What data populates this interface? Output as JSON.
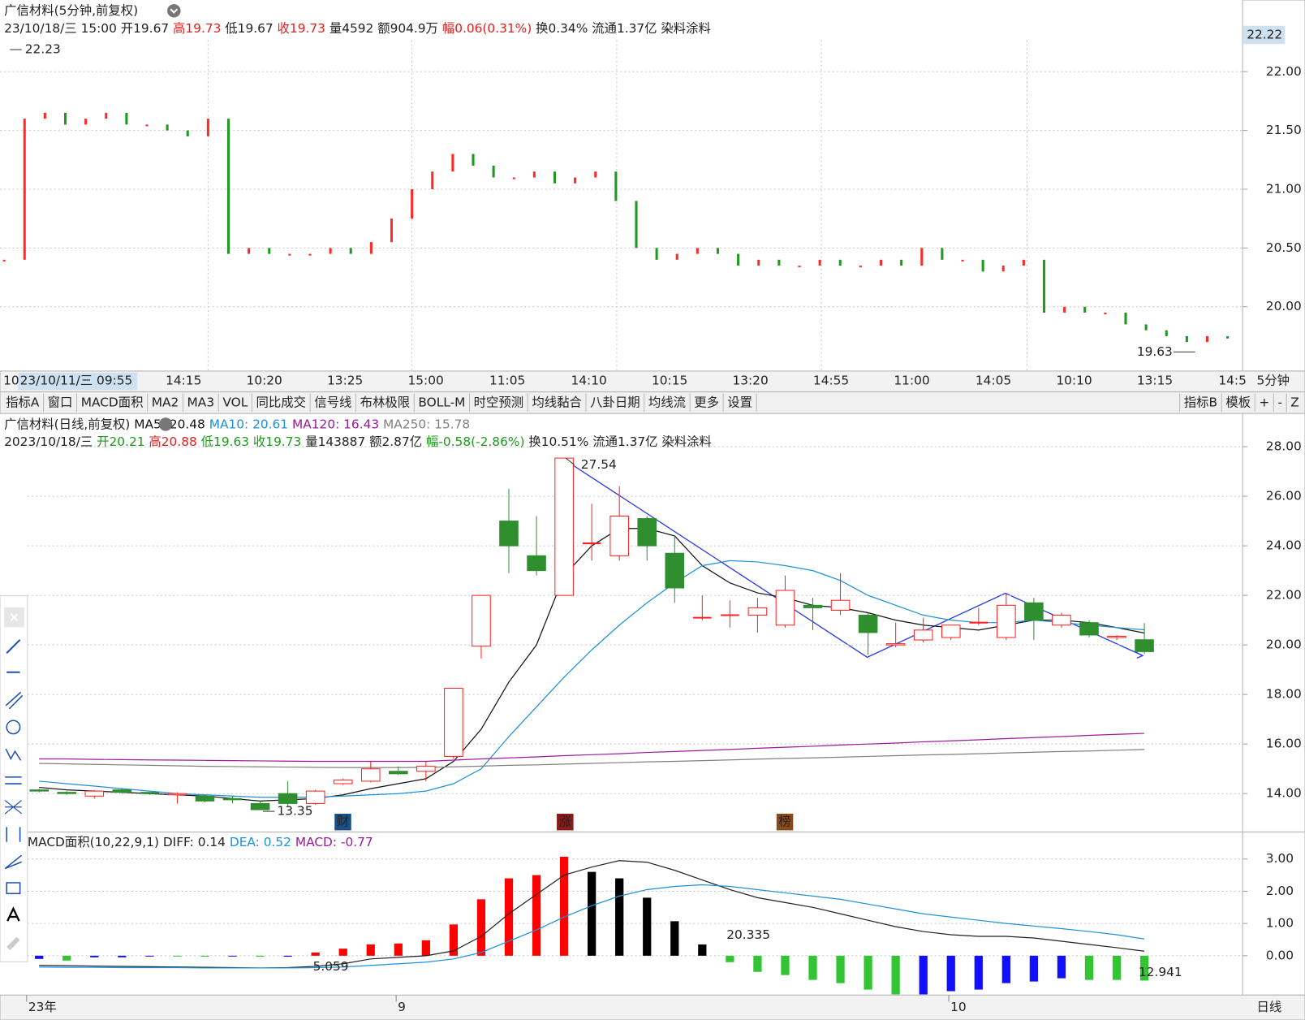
{
  "intraday": {
    "title": "广信材料(5分钟,前复权)",
    "fields": [
      "23/10/18/三 15:00",
      "开19.67",
      "高19.73",
      "低19.67",
      "收19.73",
      "量4592",
      "额904.9万",
      "幅0.06(0.31%)",
      "换0.34%",
      "流通1.37亿",
      "染料涂料"
    ],
    "current_price_label": "22.22",
    "closes": [
      20.4,
      21.6,
      21.65,
      21.55,
      21.6,
      21.65,
      21.55,
      21.55,
      21.5,
      21.45,
      21.6,
      20.45,
      20.5,
      20.45,
      20.45,
      20.45,
      20.5,
      20.45,
      20.55,
      20.75,
      21.0,
      21.15,
      21.3,
      21.2,
      21.1,
      21.1,
      21.15,
      21.05,
      21.1,
      21.15,
      20.9,
      20.5,
      20.4,
      20.45,
      20.5,
      20.45,
      20.35,
      20.4,
      20.35,
      20.35,
      20.4,
      20.35,
      20.35,
      20.4,
      20.35,
      20.5,
      20.4,
      20.4,
      20.3,
      20.35,
      20.4,
      19.95,
      20.0,
      19.95,
      19.95,
      19.85,
      19.8,
      19.75,
      19.7,
      19.75,
      19.73
    ],
    "up_color": "#ff2a2a",
    "down_color": "#1e9a1e",
    "ylim": [
      19.46,
      22.27
    ],
    "yticks": [
      {
        "value": 22,
        "label": "22.00"
      },
      {
        "value": 21.5,
        "label": "21.50"
      },
      {
        "value": 21,
        "label": "21.00"
      },
      {
        "value": 20.5,
        "label": "20.50"
      },
      {
        "value": 20,
        "label": "20.00"
      }
    ],
    "high_label": 22.23,
    "low_label": 19.63,
    "time_labels": [
      "10",
      "23/10/11/三 09:55",
      "14:15",
      "10:20",
      "13:25",
      "15:00",
      "11:05",
      "14:10",
      "10:15",
      "13:20",
      "14:55",
      "11:00",
      "14:05",
      "10:10",
      "13:15",
      "14:5"
    ],
    "period_label": "5分钟"
  },
  "toolbar": {
    "left": [
      "指标A",
      "窗口",
      "MACD面积",
      "MA2",
      "MA3",
      "VOL",
      "同比成交",
      "信号线",
      "布林极限",
      "BOLL-M",
      "时空预测",
      "均线黏合",
      "八卦日期",
      "均线流",
      "更多",
      "设置"
    ],
    "right": [
      "指标B",
      "模板",
      "+",
      "-",
      "Z"
    ]
  },
  "daily": {
    "title": "广信材料(日线,前复权)",
    "ma_legend": [
      "MA5: 20.48",
      "MA10: 20.61",
      "MA120: 16.43",
      "MA250: 15.78"
    ],
    "fields": [
      "2023/10/18/三",
      "开20.21",
      "高20.88",
      "低19.63",
      "收19.73",
      "量143887",
      "额2.87亿",
      "幅-0.58(-2.86%)",
      "换10.51%",
      "流通1.37亿",
      "染料涂料"
    ],
    "open": [
      14.15,
      14.05,
      13.9,
      14.15,
      14.05,
      13.95,
      13.9,
      13.8,
      13.6,
      14.0,
      13.6,
      14.4,
      14.5,
      14.9,
      14.9,
      15.5,
      19.95,
      25.0,
      23.6,
      22.0,
      24.1,
      23.6,
      25.1,
      23.7,
      21.1,
      21.2,
      21.2,
      20.8,
      21.6,
      21.4,
      21.2,
      20.0,
      20.2,
      20.3,
      20.9,
      20.3,
      21.7,
      20.8,
      20.9,
      20.3,
      20.21
    ],
    "high": [
      14.2,
      14.1,
      14.15,
      14.2,
      14.05,
      14.05,
      13.95,
      13.9,
      13.7,
      14.5,
      14.15,
      14.6,
      15.3,
      15.1,
      15.3,
      18.25,
      22.0,
      26.3,
      25.2,
      27.54,
      25.7,
      26.4,
      25.2,
      24.4,
      22.0,
      21.8,
      21.9,
      22.8,
      21.9,
      22.9,
      21.3,
      20.9,
      21.1,
      20.8,
      21.5,
      22.1,
      21.9,
      21.3,
      21.0,
      20.4,
      20.88
    ],
    "low": [
      14.05,
      13.95,
      13.8,
      14.0,
      13.95,
      13.6,
      13.65,
      13.6,
      13.35,
      13.5,
      13.55,
      14.35,
      14.45,
      14.75,
      14.5,
      15.4,
      19.45,
      22.9,
      22.8,
      22.0,
      23.4,
      23.4,
      23.4,
      21.7,
      21.0,
      20.7,
      20.5,
      20.7,
      20.6,
      21.2,
      19.6,
      19.9,
      20.1,
      20.2,
      20.8,
      20.2,
      20.2,
      20.7,
      20.3,
      20.2,
      19.63
    ],
    "close": [
      14.1,
      14.0,
      14.1,
      14.05,
      14.0,
      14.0,
      13.7,
      13.75,
      13.35,
      13.6,
      14.1,
      14.55,
      15.0,
      14.8,
      15.1,
      18.25,
      22.0,
      24.0,
      23.0,
      27.54,
      24.1,
      25.2,
      24.0,
      22.3,
      21.1,
      21.2,
      21.5,
      22.2,
      21.5,
      21.8,
      20.5,
      20.05,
      20.6,
      20.8,
      20.9,
      21.6,
      21.0,
      21.2,
      20.4,
      20.35,
      19.73
    ],
    "up_color": "#ff2020",
    "down_color": "#2f8f2f",
    "ma_lines": [
      {
        "color": "#111111",
        "values": [
          14.25,
          14.15,
          14.1,
          14.05,
          14.0,
          13.95,
          13.9,
          13.8,
          13.7,
          13.75,
          13.8,
          13.95,
          14.2,
          14.4,
          14.6,
          15.3,
          16.6,
          18.5,
          20.0,
          22.8,
          24.0,
          24.7,
          24.7,
          24.4,
          23.2,
          22.5,
          22.1,
          21.9,
          21.6,
          21.5,
          21.3,
          21.0,
          20.8,
          20.7,
          20.6,
          20.8,
          21.0,
          21.0,
          20.9,
          20.7,
          20.48
        ]
      },
      {
        "color": "#1e90d8",
        "values": [
          14.5,
          14.4,
          14.3,
          14.2,
          14.1,
          14.0,
          13.95,
          13.9,
          13.85,
          13.85,
          13.85,
          13.9,
          13.95,
          14.0,
          14.1,
          14.4,
          15.0,
          16.3,
          17.5,
          18.7,
          19.8,
          20.8,
          21.7,
          22.5,
          23.2,
          23.4,
          23.35,
          23.2,
          23.0,
          22.6,
          22.0,
          21.6,
          21.2,
          21.0,
          20.9,
          20.9,
          21.0,
          20.9,
          20.8,
          20.7,
          20.61
        ]
      },
      {
        "color": "#9b1b9b",
        "values": [
          15.4,
          15.4,
          15.38,
          15.37,
          15.36,
          15.35,
          15.34,
          15.33,
          15.32,
          15.31,
          15.3,
          15.3,
          15.3,
          15.3,
          15.3,
          15.35,
          15.4,
          15.44,
          15.48,
          15.53,
          15.57,
          15.61,
          15.66,
          15.7,
          15.74,
          15.78,
          15.83,
          15.87,
          15.91,
          15.96,
          16.0,
          16.04,
          16.09,
          16.13,
          16.17,
          16.22,
          16.26,
          16.3,
          16.35,
          16.39,
          16.43
        ]
      },
      {
        "color": "#808080",
        "values": [
          15.22,
          15.2,
          15.18,
          15.16,
          15.14,
          15.12,
          15.1,
          15.09,
          15.08,
          15.07,
          15.06,
          15.05,
          15.05,
          15.05,
          15.06,
          15.08,
          15.11,
          15.14,
          15.16,
          15.19,
          15.22,
          15.25,
          15.28,
          15.3,
          15.33,
          15.36,
          15.39,
          15.42,
          15.44,
          15.47,
          15.5,
          15.53,
          15.56,
          15.58,
          15.61,
          15.64,
          15.67,
          15.7,
          15.72,
          15.75,
          15.78
        ]
      }
    ],
    "ylim": [
      12.45,
      29.24
    ],
    "yticks": [
      {
        "value": 28,
        "label": "28.00"
      },
      {
        "value": 26,
        "label": "26.00"
      },
      {
        "value": 24,
        "label": "24.00"
      },
      {
        "value": 22,
        "label": "22.00"
      },
      {
        "value": 20,
        "label": "20.00"
      },
      {
        "value": 18,
        "label": "18.00"
      },
      {
        "value": 16,
        "label": "16.00"
      },
      {
        "value": 14,
        "label": "14.00"
      }
    ],
    "high_label": 27.54,
    "low_label": 13.35,
    "markers": [
      "财",
      "涨",
      "榜"
    ]
  },
  "macd": {
    "title": "MACD面积(10,22,9,1)",
    "legend": [
      "DIFF: 0.14",
      "DEA: 0.52",
      "MACD: -0.77"
    ],
    "legend_colors": [
      "#222222",
      "#1e90d8",
      "#9b1b9b"
    ],
    "bars": [
      -0.1,
      -0.15,
      -0.05,
      -0.05,
      -0.02,
      -0.02,
      -0.03,
      -0.02,
      -0.03,
      -0.03,
      0.1,
      0.22,
      0.35,
      0.38,
      0.48,
      0.97,
      1.75,
      2.4,
      2.5,
      3.07,
      2.6,
      2.4,
      1.8,
      1.07,
      0.35,
      -0.2,
      -0.5,
      -0.6,
      -0.75,
      -0.85,
      -1.05,
      -1.2,
      -1.2,
      -1.1,
      -1.05,
      -0.85,
      -0.8,
      -0.7,
      -0.75,
      -0.75,
      -0.77
    ],
    "bar_colors": [
      "#1010ff",
      "#33c433",
      "#1010ff",
      "#1010ff",
      "#1010ff",
      "#33c433",
      "#33c433",
      "#1010ff",
      "#33c433",
      "#1010ff",
      "#ff0000",
      "#ff0000",
      "#ff0000",
      "#ff0000",
      "#ff0000",
      "#ff0000",
      "#ff0000",
      "#ff0000",
      "#ff0000",
      "#ff0000",
      "#000000",
      "#000000",
      "#000000",
      "#000000",
      "#000000",
      "#33c433",
      "#33c433",
      "#33c433",
      "#33c433",
      "#33c433",
      "#33c433",
      "#33c433",
      "#1010ff",
      "#1010ff",
      "#1010ff",
      "#1010ff",
      "#1010ff",
      "#1010ff",
      "#33c433",
      "#33c433",
      "#33c433"
    ],
    "diff": [
      -0.3,
      -0.31,
      -0.32,
      -0.33,
      -0.34,
      -0.35,
      -0.36,
      -0.37,
      -0.38,
      -0.37,
      -0.33,
      -0.25,
      -0.1,
      -0.05,
      0.0,
      0.15,
      0.6,
      1.3,
      1.9,
      2.5,
      2.75,
      2.95,
      2.9,
      2.65,
      2.35,
      2.05,
      1.8,
      1.65,
      1.5,
      1.3,
      1.1,
      0.9,
      0.75,
      0.65,
      0.6,
      0.6,
      0.55,
      0.45,
      0.35,
      0.25,
      0.14
    ],
    "dea": [
      -0.35,
      -0.36,
      -0.36,
      -0.37,
      -0.37,
      -0.37,
      -0.38,
      -0.38,
      -0.38,
      -0.38,
      -0.37,
      -0.35,
      -0.3,
      -0.25,
      -0.2,
      -0.1,
      0.1,
      0.45,
      0.8,
      1.2,
      1.55,
      1.85,
      2.05,
      2.15,
      2.2,
      2.15,
      2.05,
      1.95,
      1.85,
      1.75,
      1.6,
      1.45,
      1.3,
      1.2,
      1.1,
      1.0,
      0.92,
      0.84,
      0.75,
      0.65,
      0.52
    ],
    "ylim": [
      -1.22,
      3.76
    ],
    "yticks": [
      {
        "value": 3,
        "label": "3.00"
      },
      {
        "value": 2,
        "label": "2.00"
      },
      {
        "value": 1,
        "label": "1.00"
      },
      {
        "value": 0,
        "label": "0.00"
      }
    ],
    "area_labels": [
      "20.335",
      "5.059",
      "12.941"
    ]
  },
  "x_axis": {
    "labels": [
      "23年",
      "9",
      "10"
    ],
    "period_label": "日线"
  }
}
